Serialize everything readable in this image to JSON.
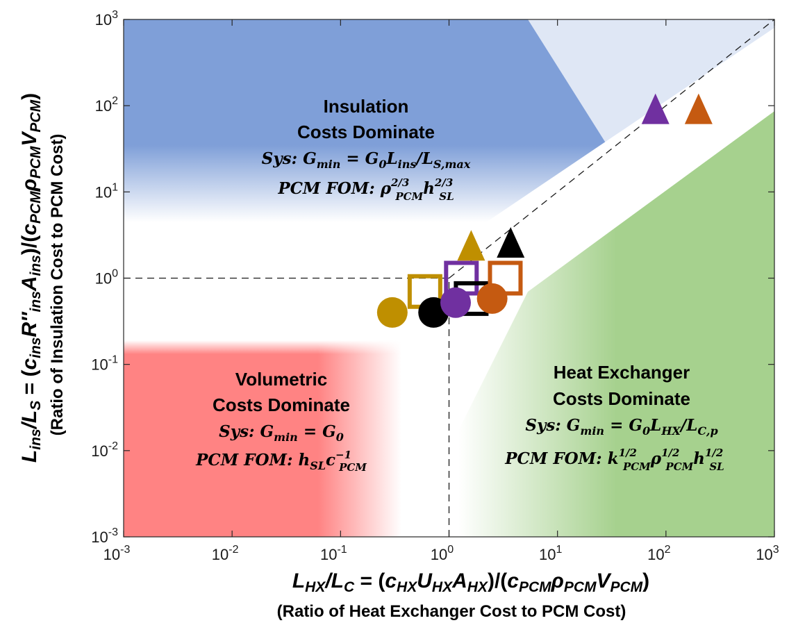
{
  "chart_data": {
    "type": "scatter",
    "x_scale": "log",
    "y_scale": "log",
    "xlim": [
      0.001,
      1000
    ],
    "ylim": [
      0.001,
      1000
    ],
    "x_ticks": [
      {
        "value": 0.001,
        "base": "10",
        "exp": "-3"
      },
      {
        "value": 0.01,
        "base": "10",
        "exp": "-2"
      },
      {
        "value": 0.1,
        "base": "10",
        "exp": "-1"
      },
      {
        "value": 1,
        "base": "10",
        "exp": "0"
      },
      {
        "value": 10,
        "base": "10",
        "exp": "1"
      },
      {
        "value": 100,
        "base": "10",
        "exp": "2"
      },
      {
        "value": 1000,
        "base": "10",
        "exp": "3"
      }
    ],
    "y_ticks": [
      {
        "value": 0.001,
        "base": "10",
        "exp": "-3"
      },
      {
        "value": 0.01,
        "base": "10",
        "exp": "-2"
      },
      {
        "value": 0.1,
        "base": "10",
        "exp": "-1"
      },
      {
        "value": 1,
        "base": "10",
        "exp": "0"
      },
      {
        "value": 10,
        "base": "10",
        "exp": "1"
      },
      {
        "value": 100,
        "base": "10",
        "exp": "2"
      },
      {
        "value": 1000,
        "base": "10",
        "exp": "3"
      }
    ],
    "xlabel": {
      "line1": "L_HX/L_C = (c_HX U_HX A_HX)/(c_PCM ρ_PCM V_PCM)",
      "line2": "(Ratio of Heat Exchanger Cost to PCM Cost)"
    },
    "ylabel": {
      "line1": "L_ins/L_S = (c_ins R″_ins A_ins)/(c_PCM ρ_PCM V_PCM)",
      "line2": "(Ratio of Insulation Cost to PCM Cost)"
    },
    "reference_lines": [
      {
        "type": "diagonal",
        "from": [
          1,
          1
        ],
        "to": [
          1000,
          1000
        ]
      },
      {
        "type": "horizontal",
        "y": 1,
        "from_x": 0.001,
        "to_x": 1
      },
      {
        "type": "vertical",
        "x": 1,
        "from_y": 0.001,
        "to_y": 1
      }
    ],
    "regions": [
      {
        "name": "insulation",
        "color": "#7f9fd8",
        "title": [
          "Insulation",
          "Costs Dominate"
        ],
        "sys": "Sys: G_min = G_0 L_ins / L_S,max",
        "fom": "PCM FOM: ρ_PCM^2/3 h_SL^2/3"
      },
      {
        "name": "volumetric",
        "color": "#ff8383",
        "title": [
          "Volumetric",
          "Costs Dominate"
        ],
        "sys": "Sys: G_min = G_0",
        "fom": "PCM FOM: h_SL c_PCM^-1"
      },
      {
        "name": "heat-exchanger",
        "color": "#a6d18e",
        "title": [
          "Heat Exchanger",
          "Costs Dominate"
        ],
        "sys": "Sys: G_min = G_0 L_HX / L_C,p",
        "fom": "PCM FOM: k_PCM^1/2 ρ_PCM^1/2 h_SL^1/2"
      }
    ],
    "colors": {
      "gold": "#bf8f00",
      "purple": "#7030a0",
      "orange": "#c55a11",
      "black": "#000000"
    },
    "points": [
      {
        "marker": "circle",
        "color": "gold",
        "x": 0.3,
        "y": 0.4
      },
      {
        "marker": "circle",
        "color": "black",
        "x": 0.72,
        "y": 0.4
      },
      {
        "marker": "circle",
        "color": "purple",
        "x": 1.15,
        "y": 0.52
      },
      {
        "marker": "circle",
        "color": "orange",
        "x": 2.5,
        "y": 0.58
      },
      {
        "marker": "square",
        "color": "gold",
        "x": 0.6,
        "y": 0.7
      },
      {
        "marker": "square",
        "color": "purple",
        "x": 1.3,
        "y": 1.0
      },
      {
        "marker": "square",
        "color": "black",
        "x": 1.6,
        "y": 0.58
      },
      {
        "marker": "square",
        "color": "orange",
        "x": 3.3,
        "y": 1.0
      },
      {
        "marker": "triangle",
        "color": "gold",
        "x": 1.6,
        "y": 2.4
      },
      {
        "marker": "triangle",
        "color": "black",
        "x": 3.7,
        "y": 2.6
      },
      {
        "marker": "triangle",
        "color": "purple",
        "x": 80,
        "y": 92
      },
      {
        "marker": "triangle",
        "color": "orange",
        "x": 200,
        "y": 92
      }
    ]
  }
}
